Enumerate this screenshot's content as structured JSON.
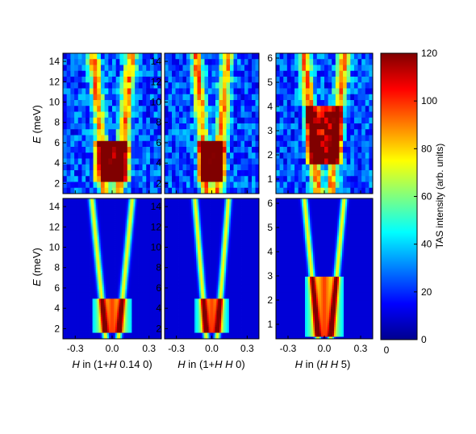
{
  "colors": {
    "colormap": [
      "#00008f",
      "#0000ff",
      "#00ffff",
      "#ffff00",
      "#ff0000",
      "#800000"
    ]
  },
  "colorbar": {
    "label": "TAS intensity (arb. units)",
    "range": [
      0,
      120
    ],
    "ticks": [
      "0",
      "20",
      "40",
      "60",
      "80",
      "100",
      "120"
    ],
    "extra_tick": "0"
  },
  "axes": {
    "ylabel_italic": "E",
    "ylabel_rest": " (meV)",
    "xlabels": [
      {
        "italic": "H",
        "rest": " in (1+",
        "italic2": "H",
        "rest2": " 0.14 0)"
      },
      {
        "italic": "H",
        "rest": " in (1+",
        "italic2": "H",
        "rest2": " ",
        "italic3": "H",
        "rest3": " 0)"
      },
      {
        "italic": "H",
        "rest": " in (",
        "italic2": "H",
        "rest2": " ",
        "italic3": "H",
        "rest3": " 5)"
      }
    ],
    "xticks": [
      "-0.3",
      "0.0",
      "0.3"
    ],
    "yticks_left": [
      "2",
      "4",
      "6",
      "8",
      "10",
      "12",
      "14"
    ],
    "yticks_right": [
      "1",
      "2",
      "3",
      "4",
      "5",
      "6"
    ]
  },
  "chart_data": [
    {
      "type": "heatmap",
      "panel": "top-left",
      "kind": "measured",
      "x_range": [
        -0.4,
        0.4
      ],
      "y_range": [
        1,
        14.8
      ],
      "z_range": [
        0,
        120
      ],
      "dispersion": "V",
      "apex_h": 0.14,
      "low_E_intense_band": [
        2,
        6
      ]
    },
    {
      "type": "heatmap",
      "panel": "top-middle",
      "kind": "measured",
      "x_range": [
        -0.4,
        0.4
      ],
      "y_range": [
        1,
        14.8
      ],
      "z_range": [
        0,
        120
      ],
      "dispersion": "V",
      "apex_h": 0.12,
      "low_E_intense_band": [
        2,
        6
      ]
    },
    {
      "type": "heatmap",
      "panel": "top-right",
      "kind": "measured",
      "x_range": [
        -0.4,
        0.4
      ],
      "y_range": [
        0.4,
        6.2
      ],
      "z_range": [
        0,
        120
      ],
      "dispersion": "V",
      "apex_h": 0.15,
      "low_E_intense_band": [
        1.5,
        4
      ]
    },
    {
      "type": "heatmap",
      "panel": "bottom-left",
      "kind": "simulated",
      "x_range": [
        -0.4,
        0.4
      ],
      "y_range": [
        1,
        14.8
      ],
      "z_range": [
        0,
        120
      ],
      "dispersion": "V",
      "apex_h": 0.15,
      "low_E_intense_band": [
        1.5,
        5
      ]
    },
    {
      "type": "heatmap",
      "panel": "bottom-middle",
      "kind": "simulated",
      "x_range": [
        -0.4,
        0.4
      ],
      "y_range": [
        1,
        14.8
      ],
      "z_range": [
        0,
        120
      ],
      "dispersion": "V",
      "apex_h": 0.13,
      "low_E_intense_band": [
        1.5,
        5
      ]
    },
    {
      "type": "heatmap",
      "panel": "bottom-right",
      "kind": "simulated",
      "x_range": [
        -0.4,
        0.4
      ],
      "y_range": [
        0.4,
        6.2
      ],
      "z_range": [
        0,
        120
      ],
      "dispersion": "V",
      "apex_h": 0.15,
      "low_E_intense_band": [
        0.5,
        3
      ]
    }
  ]
}
